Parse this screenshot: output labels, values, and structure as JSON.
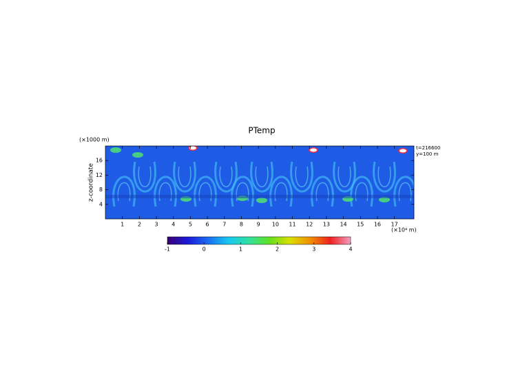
{
  "chart_data": {
    "type": "heatmap",
    "title": "PTemp",
    "ylabel": "z-coordinate",
    "yunit": "(×1000 m)",
    "xunit": "(×10⁴ m)",
    "annotations": [
      "t=216600",
      "y=100 m"
    ],
    "xlim": [
      0,
      18.15
    ],
    "xticks": [
      1,
      2,
      3,
      4,
      5,
      6,
      7,
      8,
      9,
      10,
      11,
      12,
      13,
      14,
      15,
      16,
      17
    ],
    "ylim": [
      0,
      20
    ],
    "yticks": [
      4,
      8,
      12,
      16
    ],
    "colorbar": {
      "lim": [
        -1,
        4
      ],
      "ticks": [
        -1,
        0,
        1,
        2,
        3,
        4
      ],
      "colormap": [
        "#3a0070",
        "#1a1ad8",
        "#1a6cf0",
        "#18c8f0",
        "#30e0a0",
        "#60e020",
        "#d8e000",
        "#f09000",
        "#f02020",
        "#f0a0c0"
      ]
    }
  }
}
